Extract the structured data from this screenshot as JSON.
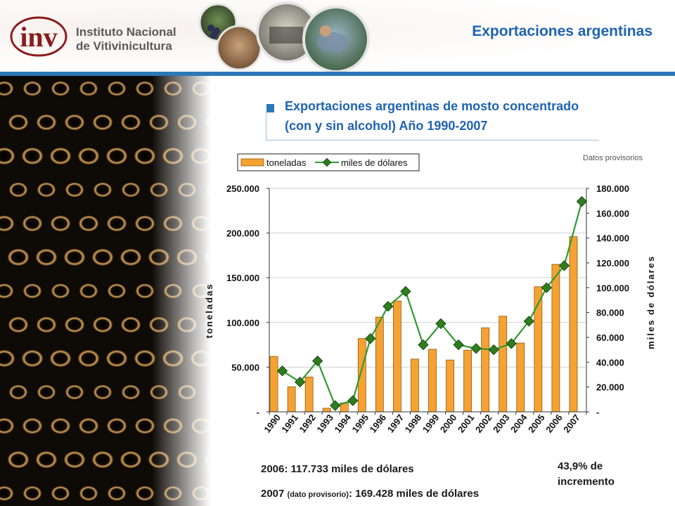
{
  "header": {
    "logo_mark": "inv",
    "logo_line1": "Instituto Nacional",
    "logo_line2": "de Vitivinicultura",
    "title": "Exportaciones argentinas",
    "accent_color": "#1f63b3"
  },
  "section": {
    "title_line1": "Exportaciones argentinas de mosto concentrado",
    "title_line2": "(con y sin alcohol) Año 1990-2007",
    "note": "Datos provisorios"
  },
  "chart_data": {
    "type": "bar+line",
    "categories": [
      "1990",
      "1991",
      "1992",
      "1993",
      "1994",
      "1995",
      "1996",
      "1997",
      "1998",
      "1999",
      "2000",
      "2001",
      "2002",
      "2003",
      "2004",
      "2005",
      "2006",
      "2007"
    ],
    "series": [
      {
        "name": "toneladas",
        "type": "bar",
        "axis": "left",
        "color": "#f5a233",
        "values": [
          62000,
          28000,
          39000,
          4000,
          10000,
          82000,
          106000,
          124000,
          59000,
          70000,
          58000,
          69000,
          94000,
          107000,
          77000,
          140000,
          165000,
          196000
        ]
      },
      {
        "name": "miles de dólares",
        "type": "line",
        "axis": "right",
        "color": "#2f9a2f",
        "marker_color": "#2e7d1e",
        "values": [
          33000,
          24000,
          41000,
          5000,
          9000,
          59000,
          85000,
          97000,
          54000,
          71000,
          54000,
          51000,
          50000,
          55000,
          73000,
          100000,
          117733,
          169428
        ]
      }
    ],
    "left_axis": {
      "label": "toneladas",
      "ylim": [
        0,
        250000
      ],
      "ticks": [
        "-",
        "50.000",
        "100.000",
        "150.000",
        "200.000",
        "250.000"
      ]
    },
    "right_axis": {
      "label": "miles de dólares",
      "ylim": [
        0,
        180000
      ],
      "ticks": [
        "-",
        "20.000",
        "40.000",
        "60.000",
        "80.000",
        "100.000",
        "120.000",
        "140.000",
        "160.000",
        "180.000"
      ]
    },
    "legend_position": "top-left",
    "grid": true
  },
  "footer": {
    "line1": "2006: 117.733 miles de dólares",
    "line2_a": "2007 ",
    "line2_b": "(dato provisorio)",
    "line2_c": ": 169.428 miles de dólares",
    "increment": "43,9% de incremento"
  }
}
